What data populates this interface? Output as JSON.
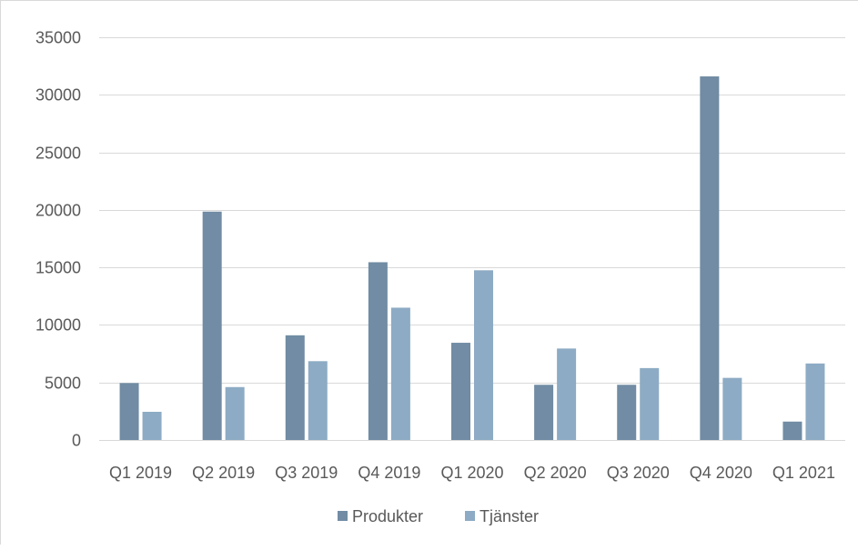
{
  "chart_data": {
    "type": "bar",
    "categories": [
      "Q1 2019",
      "Q2 2019",
      "Q3 2019",
      "Q4 2019",
      "Q1 2020",
      "Q2 2020",
      "Q3 2020",
      "Q4 2020",
      "Q1 2021"
    ],
    "series": [
      {
        "name": "Produkter",
        "color": "#718ca4",
        "values": [
          4950,
          19850,
          9100,
          15450,
          8450,
          4800,
          4800,
          31600,
          1600
        ]
      },
      {
        "name": "Tjänster",
        "color": "#8dabc4",
        "values": [
          2450,
          4600,
          6850,
          11500,
          14750,
          7950,
          6250,
          5400,
          6650
        ]
      }
    ],
    "yticks": [
      "0",
      "5000",
      "10000",
      "15000",
      "20000",
      "25000",
      "30000",
      "35000"
    ],
    "ylim": [
      0,
      35000
    ],
    "grid": true,
    "legend_position": "bottom",
    "title": "",
    "xlabel": "",
    "ylabel": ""
  }
}
